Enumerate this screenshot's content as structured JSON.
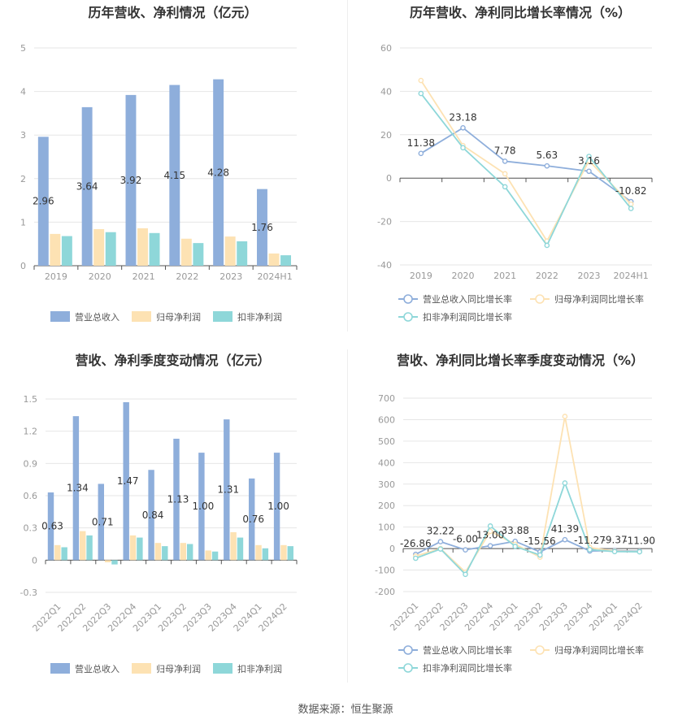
{
  "footer": "数据来源：恒生聚源",
  "legend_bar": [
    "营业总收入",
    "归母净利润",
    "扣非净利润"
  ],
  "legend_line": [
    "营业总收入同比增长率",
    "归母净利润同比增长率",
    "扣非净利润同比增长率"
  ],
  "colors": {
    "revenue": "#8eaedb",
    "net_profit": "#fde2b3",
    "deducted": "#8ed7d9",
    "rev_line": "#8eaedb",
    "np_line": "#fde2b3",
    "ded_line": "#8ed7d9"
  },
  "chart_data": [
    {
      "id": "annual_values",
      "type": "bar",
      "title": "历年营收、净利情况（亿元）",
      "categories": [
        "2019",
        "2020",
        "2021",
        "2022",
        "2023",
        "2024H1"
      ],
      "ylim": [
        0,
        5
      ],
      "yticks": [
        0,
        1,
        2,
        3,
        4,
        5
      ],
      "series": [
        {
          "name": "营业总收入",
          "values": [
            2.96,
            3.64,
            3.92,
            4.15,
            4.28,
            1.76
          ],
          "labels": [
            "2.96",
            "3.64",
            "3.92",
            "4.15",
            "4.28",
            "1.76"
          ]
        },
        {
          "name": "归母净利润",
          "values": [
            0.73,
            0.84,
            0.86,
            0.62,
            0.67,
            0.28
          ]
        },
        {
          "name": "扣非净利润",
          "values": [
            0.68,
            0.77,
            0.75,
            0.52,
            0.56,
            0.24
          ]
        }
      ]
    },
    {
      "id": "annual_growth",
      "type": "line",
      "title": "历年营收、净利同比增长率情况（%）",
      "categories": [
        "2019",
        "2020",
        "2021",
        "2022",
        "2023",
        "2024H1"
      ],
      "ylim": [
        -40,
        60
      ],
      "yticks": [
        -40,
        -20,
        0,
        20,
        40,
        60
      ],
      "series": [
        {
          "name": "营业总收入同比增长率",
          "values": [
            11.38,
            23.18,
            7.78,
            5.63,
            3.16,
            -10.82
          ],
          "labels": [
            "11.38",
            "23.18",
            "7.78",
            "5.63",
            "3.16",
            "-10.82"
          ]
        },
        {
          "name": "归母净利润同比增长率",
          "values": [
            45,
            15,
            2,
            -29,
            8,
            -12
          ]
        },
        {
          "name": "扣非净利润同比增长率",
          "values": [
            39,
            14,
            -4,
            -31,
            10,
            -14
          ]
        }
      ]
    },
    {
      "id": "quarterly_values",
      "type": "bar",
      "title": "营收、净利季度变动情况（亿元）",
      "categories": [
        "2022Q1",
        "2022Q2",
        "2022Q3",
        "2022Q4",
        "2023Q1",
        "2023Q2",
        "2023Q3",
        "2023Q4",
        "2024Q1",
        "2024Q2"
      ],
      "ylim": [
        -0.3,
        1.5
      ],
      "yticks": [
        -0.3,
        0,
        0.3,
        0.6,
        0.9,
        1.2,
        1.5
      ],
      "series": [
        {
          "name": "营业总收入",
          "values": [
            0.63,
            1.34,
            0.71,
            1.47,
            0.84,
            1.13,
            1.0,
            1.31,
            0.76,
            1.0
          ],
          "labels": [
            "0.63",
            "1.34",
            "0.71",
            "1.47",
            "0.84",
            "1.13",
            "1.00",
            "1.31",
            "0.76",
            "1.00"
          ]
        },
        {
          "name": "归母净利润",
          "values": [
            0.14,
            0.27,
            -0.02,
            0.23,
            0.16,
            0.16,
            0.09,
            0.26,
            0.14,
            0.14
          ]
        },
        {
          "name": "扣非净利润",
          "values": [
            0.12,
            0.23,
            -0.04,
            0.21,
            0.13,
            0.15,
            0.08,
            0.21,
            0.11,
            0.13
          ]
        }
      ]
    },
    {
      "id": "quarterly_growth",
      "type": "line",
      "title": "营收、净利同比增长率季度变动情况（%）",
      "categories": [
        "2022Q1",
        "2022Q2",
        "2022Q3",
        "2022Q4",
        "2023Q1",
        "2023Q2",
        "2023Q3",
        "2023Q4",
        "2024Q1",
        "2024Q2"
      ],
      "ylim": [
        -200,
        700
      ],
      "yticks": [
        -200,
        -100,
        0,
        100,
        200,
        300,
        400,
        500,
        600,
        700
      ],
      "series": [
        {
          "name": "营业总收入同比增长率",
          "values": [
            -26.86,
            32.22,
            -6.0,
            13.0,
            33.88,
            -15.56,
            41.39,
            -11.27,
            -9.37,
            -11.9
          ],
          "labels": [
            "-26.86",
            "32.22",
            "-6.00",
            "13.00",
            "33.88",
            "-15.56",
            "41.39",
            "-11.27",
            "-9.37",
            "-11.90"
          ]
        },
        {
          "name": "归母净利润同比增长率",
          "values": [
            -35,
            0,
            -110,
            80,
            20,
            -40,
            615,
            5,
            -12,
            -14
          ]
        },
        {
          "name": "扣非净利润同比增长率",
          "values": [
            -45,
            -2,
            -120,
            105,
            10,
            -30,
            305,
            -5,
            -14,
            -15
          ]
        }
      ]
    }
  ]
}
